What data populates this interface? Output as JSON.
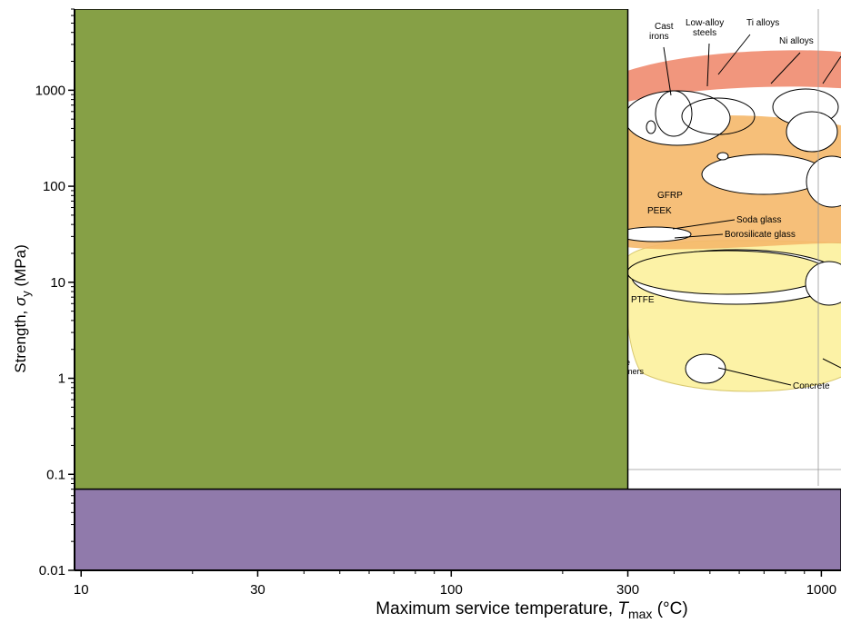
{
  "chart_data": {
    "type": "area",
    "xlabel_prefix": "Maximum service temperature, ",
    "xlabel_symbol": "T",
    "xlabel_sub": "max",
    "xlabel_unit": " (°C)",
    "ylabel_prefix": "Strength, ",
    "ylabel_symbol": "σ",
    "ylabel_sub": "y",
    "ylabel_unit": " (MPa)",
    "x_scale": "log",
    "y_scale": "log",
    "xlim": [
      9.6,
      1130
    ],
    "ylim": [
      0.01,
      7000
    ],
    "x_ticks": [
      10,
      30,
      100,
      300,
      1000
    ],
    "x_tick_labels": [
      "10",
      "30",
      "100",
      "300",
      "1000"
    ],
    "y_ticks": [
      0.01,
      0.1,
      1,
      10,
      100,
      1000
    ],
    "y_tick_labels": [
      "0.01",
      "0.1",
      "1",
      "10",
      "100",
      "1000"
    ],
    "regions": [
      {
        "name": "green-region",
        "color": "#86a046",
        "x": [
          9.6,
          300
        ],
        "y": [
          0.07,
          7000
        ]
      },
      {
        "name": "purple-region",
        "color": "#907aab",
        "x": [
          9.6,
          1130
        ],
        "y": [
          0.01,
          0.07
        ]
      }
    ],
    "inset_labels": [
      "Cast irons",
      "Low-alloy steels",
      "Ti alloys",
      "Ni alloys",
      "GFRP",
      "PEEK",
      "Soda glass",
      "Borosilicate glass",
      "PTFE",
      "Concrete"
    ],
    "colors": {
      "axis": "#000000",
      "green": "#86a046",
      "purple": "#907aab",
      "orange": "#f5b86a",
      "red": "#ee8466",
      "yellow": "#fcf2a6"
    }
  }
}
